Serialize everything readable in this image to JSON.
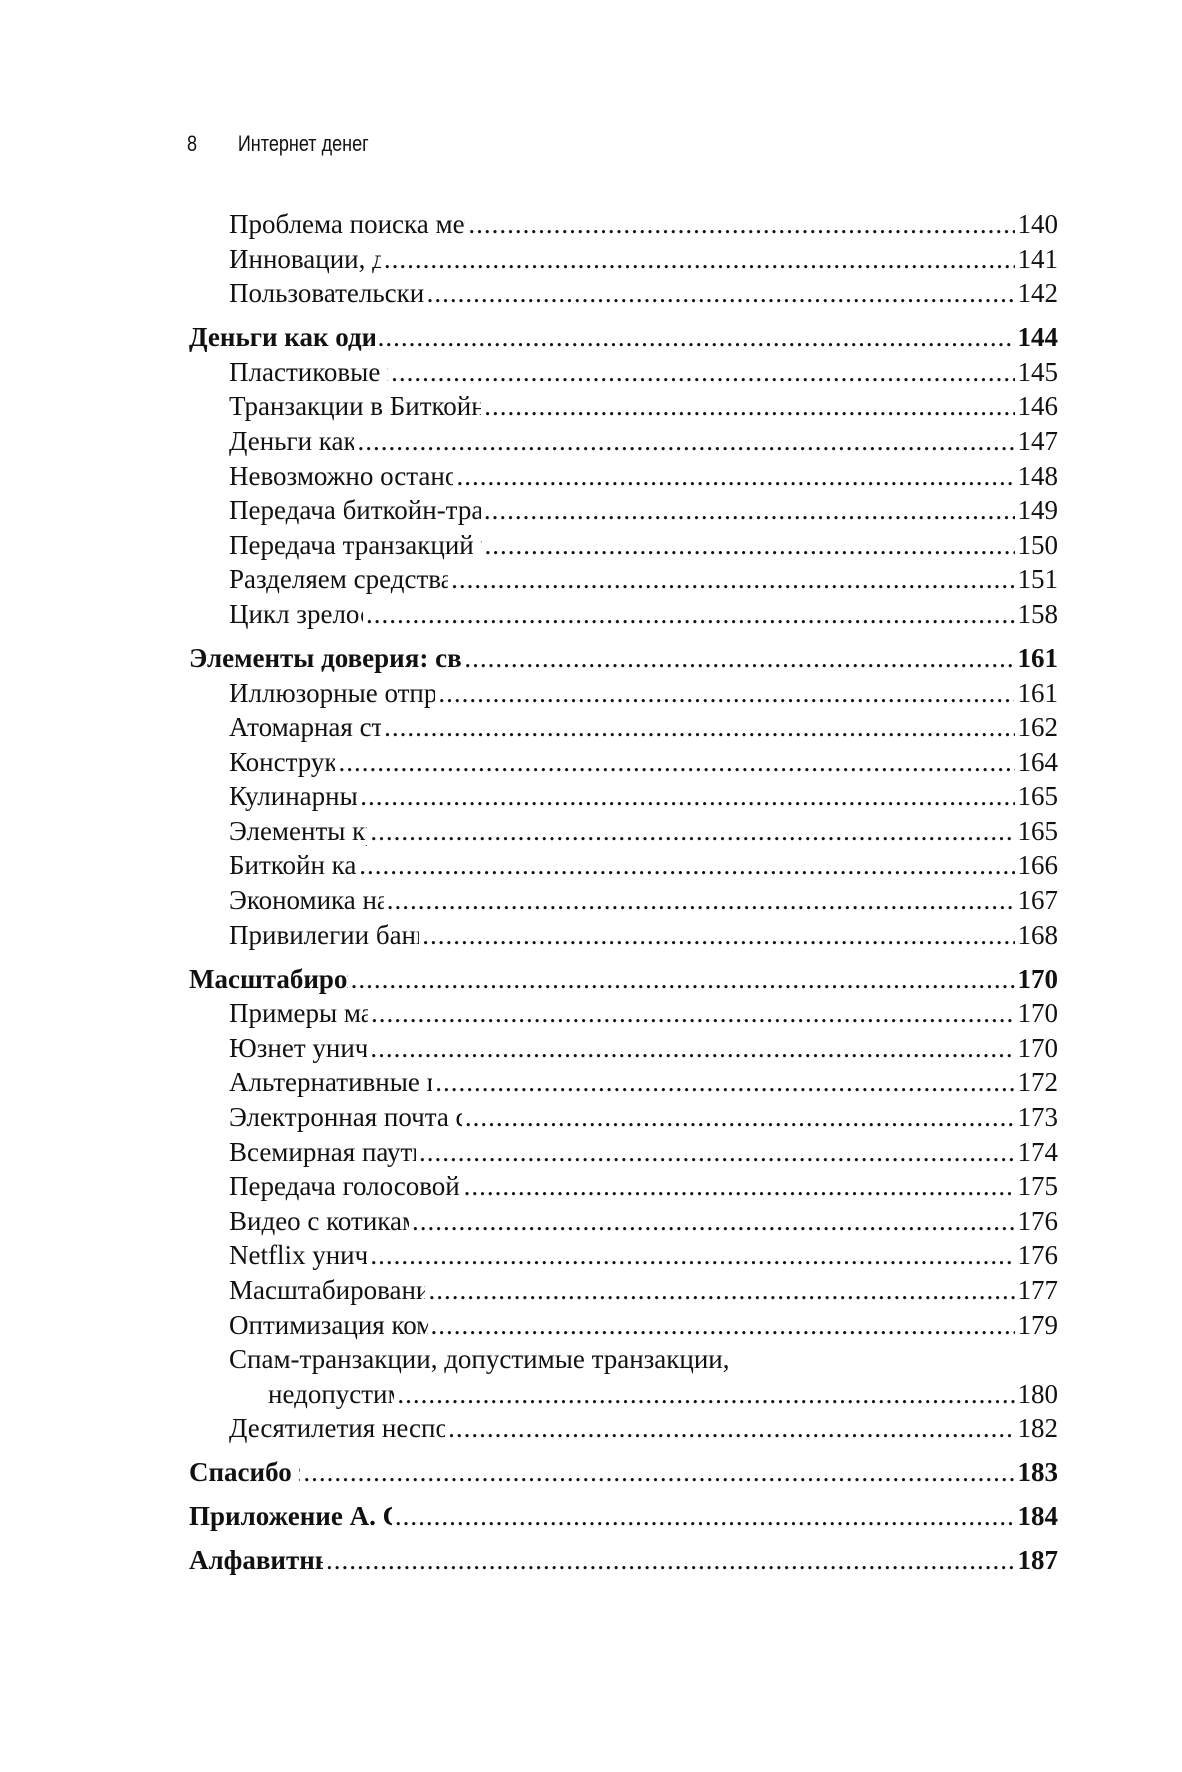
{
  "header": {
    "page_number": "8",
    "book_title": "Интернет денег"
  },
  "toc": [
    {
      "level": "sub",
      "title": "Проблема поиска метафор для традиционного банкинга",
      "page": "140"
    },
    {
      "level": "sub",
      "title": "Инновации, дизайн и принятие",
      "page": "141"
    },
    {
      "level": "sub",
      "title": "Пользовательские интерфейсы и общество",
      "page": "142"
    },
    {
      "level": "main",
      "title": "Деньги как один из видов контента",
      "page": "144"
    },
    {
      "level": "sub",
      "title": "Пластиковые карты небезопасны",
      "page": "145"
    },
    {
      "level": "sub",
      "title": "Транзакции в Биткойне: безопасность на основе архитектуры",
      "page": "146"
    },
    {
      "level": "sub",
      "title": "Деньги как вид контента",
      "page": "147"
    },
    {
      "level": "sub",
      "title": "Невозможно остановить транзакции в биткойн-сети",
      "page": "148"
    },
    {
      "level": "sub",
      "title": "Передача биткойн-транзакций с помощью смайликов в Skype",
      "page": "149"
    },
    {
      "level": "sub",
      "title": "Передача транзакций через коротковолновый радиоприемник",
      "page": "150"
    },
    {
      "level": "sub",
      "title": "Разделяем средства коммуникации и информацию",
      "page": "151"
    },
    {
      "level": "sub",
      "title": "Цикл зрелости технологий",
      "page": "158"
    },
    {
      "level": "main",
      "title": "Элементы доверия: свободная реализация креативных идей",
      "page": "161"
    },
    {
      "level": "sub",
      "title": "Иллюзорные отправители, получатели и счета",
      "page": "161"
    },
    {
      "level": "sub",
      "title": "Атомарная структура Биткойна",
      "page": "162"
    },
    {
      "level": "sub",
      "title": "Конструктор «Лего»",
      "page": "164"
    },
    {
      "level": "sub",
      "title": "Кулинарный конструктор",
      "page": "165"
    },
    {
      "level": "sub",
      "title": "Элементы креативных идей",
      "page": "165"
    },
    {
      "level": "sub",
      "title": "Биткойн как конструктор",
      "page": "166"
    },
    {
      "level": "sub",
      "title": "Экономика на базе фокус-групп",
      "page": "167"
    },
    {
      "level": "sub",
      "title": "Привилегии банков и банки-наблюдатели",
      "page": "168"
    },
    {
      "level": "main",
      "title": "Масштабирование Биткойна",
      "page": "170"
    },
    {
      "level": "sub",
      "title": "Примеры масштабирования",
      "page": "170"
    },
    {
      "level": "sub",
      "title": "Юзнет уничтожит интернет",
      "page": "170"
    },
    {
      "level": "sub",
      "title": "Альтернативные группы уничтожат интернет",
      "page": "172"
    },
    {
      "level": "sub",
      "title": "Электронная почта с вложениями уничтожит интернет",
      "page": "173"
    },
    {
      "level": "sub",
      "title": "Всемирная паутина уничтожит интернет",
      "page": "174"
    },
    {
      "level": "sub",
      "title": "Передача голосовой информации уничтожит интернет",
      "page": "175"
    },
    {
      "level": "sub",
      "title": "Видео с котиками уничтожат интернет",
      "page": "176"
    },
    {
      "level": "sub",
      "title": "Netflix уничтожит интернет",
      "page": "176"
    },
    {
      "level": "sub",
      "title": "Масштабирование — это движущаяся цель",
      "page": "177"
    },
    {
      "level": "sub",
      "title": "Оптимизация комиссий и масштабирование",
      "page": "179"
    },
    {
      "level": "sub",
      "title": "Спам-транзакции, допустимые транзакции,",
      "title_cont": "недопустимые транзакции",
      "page": "180"
    },
    {
      "level": "sub",
      "title": "Десятилетия неспособности к масштабированию",
      "page": "182"
    },
    {
      "level": "main",
      "title": "Спасибо за чтение!",
      "page": "183"
    },
    {
      "level": "main",
      "title": "Приложение А. Ссылки на видеозаписи",
      "page": "184"
    },
    {
      "level": "main",
      "title": "Алфавитный указатель",
      "page": "187"
    }
  ]
}
